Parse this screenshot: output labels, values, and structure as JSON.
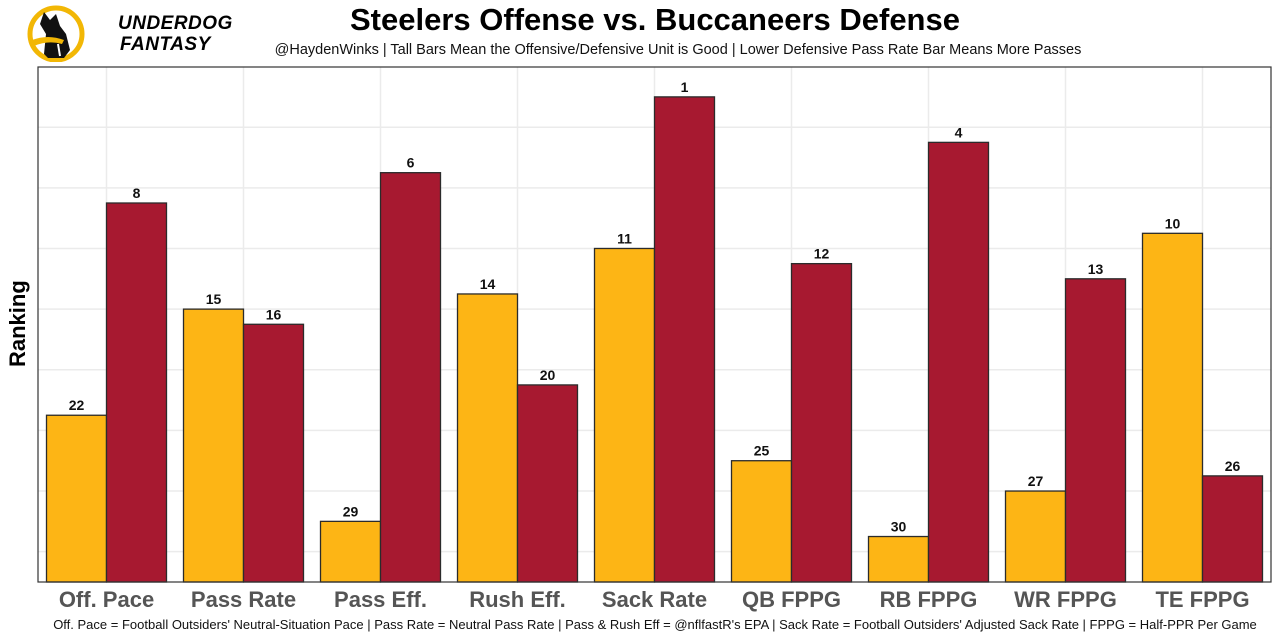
{
  "logo": {
    "line1": "UNDERDOG",
    "line2": "FANTASY"
  },
  "chart_data": {
    "type": "bar",
    "title": "Steelers Offense vs. Buccaneers Defense",
    "subtitle": "@HaydenWinks | Tall Bars Mean the Offensive/Defensive Unit is Good | Lower Defensive Pass Rate Bar Means More Passes",
    "xlabel": "",
    "ylabel": "Ranking",
    "caption": "Off. Pace = Football Outsiders' Neutral-Situation Pace | Pass Rate = Neutral Pass Rate | Pass & Rush Eff = @nflfastR's EPA | Sack Rate = Football Outsiders' Adjusted Sack Rate | FPPG = Half-PPR Per Game",
    "categories": [
      "Off. Pace",
      "Pass Rate",
      "Pass Eff.",
      "Rush Eff.",
      "Sack Rate",
      "QB FPPG",
      "RB FPPG",
      "WR FPPG",
      "TE FPPG"
    ],
    "series": [
      {
        "name": "Steelers Offense",
        "color": "#FDB515",
        "values": [
          22,
          15,
          29,
          14,
          11,
          25,
          30,
          27,
          10
        ]
      },
      {
        "name": "Buccaneers Defense",
        "color": "#A71930",
        "values": [
          8,
          16,
          6,
          20,
          1,
          12,
          4,
          13,
          26
        ]
      }
    ],
    "bar_height_rule": "bar height = 33 - rank (rank 1 tallest)",
    "ylim_rank": [
      33,
      -1
    ],
    "y_ticks_shown": false,
    "grid": true,
    "legend": "none"
  }
}
